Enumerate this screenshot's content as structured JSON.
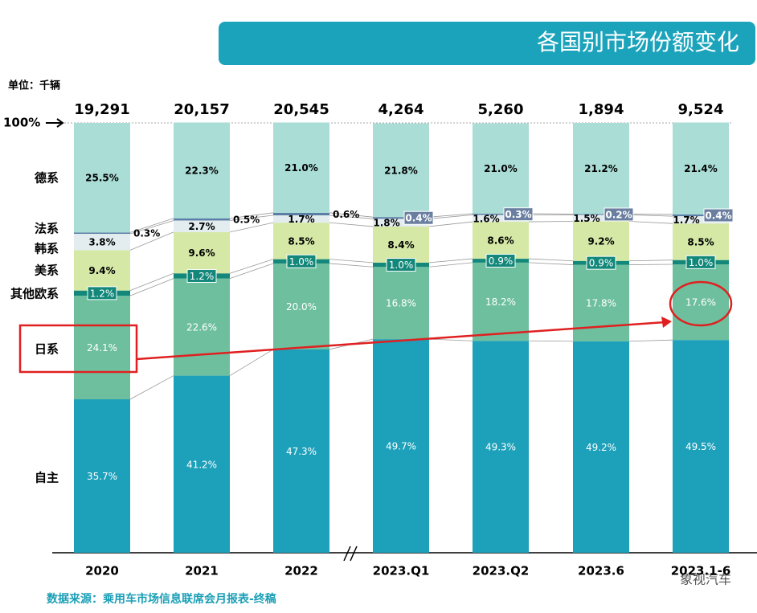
{
  "chart_data": {
    "type": "stacked_bar_100",
    "title": "各国别市场份额变化",
    "unit_label": "单位：千辆",
    "top_label": "100%",
    "source": "数据来源：乘用车市场信息联席会月报表-终稿",
    "watermark": "象视汽车",
    "categories": [
      "2020",
      "2021",
      "2022",
      "2023.Q1",
      "2023.Q2",
      "2023.6",
      "2023.1-6"
    ],
    "totals": {
      "values": [
        19291,
        20157,
        20545,
        4264,
        5260,
        1894,
        9524
      ],
      "value_labels": [
        "19,291",
        "20,157",
        "20,545",
        "4,264",
        "5,260",
        "1,894",
        "9,524"
      ]
    },
    "ylim": [
      0,
      100
    ],
    "series": [
      {
        "name": "自主",
        "color": "#1da0ba",
        "values": [
          35.7,
          41.2,
          47.3,
          49.7,
          49.3,
          49.2,
          49.5
        ],
        "value_labels": [
          "35.7%",
          "41.2%",
          "47.3%",
          "49.7%",
          "49.3%",
          "49.2%",
          "49.5%"
        ]
      },
      {
        "name": "日系",
        "color": "#6dbf9e",
        "values": [
          24.1,
          22.6,
          20.0,
          16.8,
          18.2,
          17.8,
          17.6
        ],
        "value_labels": [
          "24.1%",
          "22.6%",
          "20.0%",
          "16.8%",
          "18.2%",
          "17.8%",
          "17.6%"
        ]
      },
      {
        "name": "其他欧系",
        "color": "#12877a",
        "values": [
          1.2,
          1.2,
          1.0,
          1.0,
          0.9,
          0.9,
          1.0
        ],
        "value_labels": [
          "1.2%",
          "1.2%",
          "1.0%",
          "1.0%",
          "0.9%",
          "0.9%",
          "1.0%"
        ]
      },
      {
        "name": "美系",
        "color": "#d5e8a6",
        "values": [
          9.4,
          9.6,
          8.5,
          8.4,
          8.6,
          9.2,
          8.5
        ],
        "value_labels": [
          "9.4%",
          "9.6%",
          "8.5%",
          "8.4%",
          "8.6%",
          "9.2%",
          "8.5%"
        ]
      },
      {
        "name": "韩系",
        "color": "#e3edef",
        "values": [
          3.8,
          2.7,
          1.7,
          1.8,
          1.6,
          1.5,
          1.7
        ],
        "value_labels": [
          "3.8%",
          "2.7%",
          "1.7%",
          "1.8%",
          "1.6%",
          "1.5%",
          "1.7%"
        ]
      },
      {
        "name": "法系",
        "color": "#5a7ea6",
        "values": [
          0.3,
          0.5,
          0.6,
          0.4,
          0.3,
          0.2,
          0.4
        ],
        "value_labels": [
          "0.3%",
          "0.5%",
          "0.6%",
          "0.4%",
          "0.3%",
          "0.2%",
          "0.4%"
        ]
      },
      {
        "name": "德系",
        "color": "#a9ddd6",
        "values": [
          25.5,
          22.3,
          21.0,
          21.8,
          21.0,
          21.2,
          21.4
        ],
        "value_labels": [
          "25.5%",
          "22.3%",
          "21.0%",
          "21.8%",
          "21.0%",
          "21.2%",
          "21.4%"
        ]
      }
    ]
  }
}
